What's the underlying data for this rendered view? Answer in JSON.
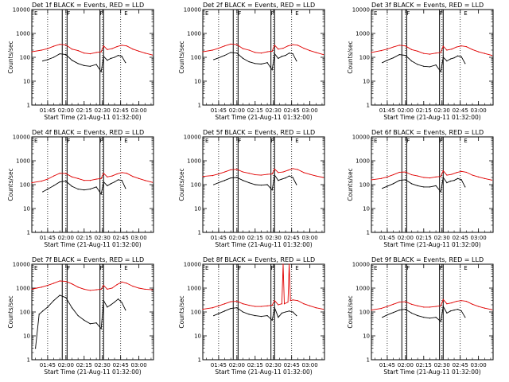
{
  "colors": {
    "events": "#000000",
    "lld": "#e00000",
    "marker": "#000000"
  },
  "layout": {
    "rows": 3,
    "cols": 3
  },
  "common": {
    "xlabel": "Start Time (21-Aug-11 01:32:00)",
    "ylabel": "Counts/sec",
    "x_ticks": [
      "01:45",
      "02:00",
      "02:15",
      "02:30",
      "02:45",
      "03:00"
    ],
    "y_ticks": [
      "1",
      "10",
      "100",
      "1000",
      "10000"
    ],
    "xlim": [
      "01:32",
      "03:12"
    ],
    "ylim": [
      1,
      10000
    ],
    "yscale": "log",
    "dotted_lines": [
      "01:45",
      "02:00",
      "02:30",
      "02:45"
    ],
    "solid_lines": [
      "01:57",
      "02:01",
      "02:28",
      "02:31"
    ],
    "flag_labels": [
      {
        "time": "01:34",
        "text": "E"
      },
      {
        "time": "02:01",
        "text": "F"
      },
      {
        "time": "02:28",
        "text": "F"
      },
      {
        "time": "02:48",
        "text": "E"
      }
    ]
  },
  "chart_data": [
    {
      "type": "line",
      "title": "Det 1f BLACK = Events, RED = LLD",
      "ylabel": "Counts/sec",
      "xlabel": "Start Time (21-Aug-11 01:32:00)",
      "series": [
        {
          "name": "Events",
          "color": "#000000",
          "x": [
            "01:41",
            "01:45",
            "01:50",
            "01:55",
            "02:00",
            "02:05",
            "02:10",
            "02:15",
            "02:20",
            "02:25",
            "02:29",
            "02:31",
            "02:34",
            "02:37",
            "02:40",
            "02:43",
            "02:46",
            "02:49"
          ],
          "y": [
            70,
            80,
            100,
            140,
            130,
            75,
            55,
            45,
            42,
            50,
            25,
            110,
            75,
            90,
            100,
            120,
            110,
            60
          ]
        },
        {
          "name": "LLD",
          "color": "#e00000",
          "x": [
            "01:32",
            "01:40",
            "01:45",
            "01:50",
            "01:55",
            "02:00",
            "02:05",
            "02:10",
            "02:15",
            "02:20",
            "02:25",
            "02:29",
            "02:31",
            "02:34",
            "02:38",
            "02:42",
            "02:46",
            "02:50",
            "02:55",
            "03:00",
            "03:05",
            "03:11"
          ],
          "y": [
            170,
            200,
            230,
            290,
            350,
            330,
            220,
            190,
            150,
            140,
            160,
            170,
            300,
            210,
            230,
            280,
            320,
            300,
            220,
            180,
            150,
            125
          ]
        }
      ]
    },
    {
      "type": "line",
      "title": "Det 2f BLACK = Events, RED = LLD",
      "ylabel": "Counts/sec",
      "xlabel": "Start Time (21-Aug-11 01:32:00)",
      "series": [
        {
          "name": "Events",
          "color": "#000000",
          "x": [
            "01:41",
            "01:45",
            "01:50",
            "01:55",
            "02:00",
            "02:05",
            "02:10",
            "02:15",
            "02:20",
            "02:25",
            "02:29",
            "02:31",
            "02:34",
            "02:37",
            "02:40",
            "02:43",
            "02:46",
            "02:49"
          ],
          "y": [
            80,
            95,
            120,
            160,
            150,
            90,
            65,
            55,
            52,
            60,
            30,
            140,
            90,
            110,
            120,
            150,
            140,
            70
          ]
        },
        {
          "name": "LLD",
          "color": "#e00000",
          "x": [
            "01:32",
            "01:40",
            "01:45",
            "01:50",
            "01:55",
            "02:00",
            "02:05",
            "02:10",
            "02:15",
            "02:20",
            "02:25",
            "02:29",
            "02:31",
            "02:34",
            "02:38",
            "02:42",
            "02:46",
            "02:50",
            "02:55",
            "03:00",
            "03:05",
            "03:11"
          ],
          "y": [
            170,
            200,
            240,
            300,
            360,
            340,
            230,
            200,
            160,
            150,
            170,
            180,
            320,
            220,
            240,
            300,
            340,
            320,
            240,
            190,
            160,
            130
          ]
        }
      ]
    },
    {
      "type": "line",
      "title": "Det 3f BLACK = Events, RED = LLD",
      "ylabel": "Counts/sec",
      "xlabel": "Start Time (21-Aug-11 01:32:00)",
      "series": [
        {
          "name": "Events",
          "color": "#000000",
          "x": [
            "01:41",
            "01:45",
            "01:50",
            "01:55",
            "02:00",
            "02:05",
            "02:10",
            "02:15",
            "02:20",
            "02:25",
            "02:29",
            "02:31",
            "02:34",
            "02:37",
            "02:40",
            "02:43",
            "02:46",
            "02:49"
          ],
          "y": [
            60,
            75,
            95,
            130,
            120,
            70,
            50,
            42,
            40,
            48,
            25,
            100,
            70,
            85,
            95,
            115,
            105,
            55
          ]
        },
        {
          "name": "LLD",
          "color": "#e00000",
          "x": [
            "01:32",
            "01:40",
            "01:45",
            "01:50",
            "01:55",
            "02:00",
            "02:05",
            "02:10",
            "02:15",
            "02:20",
            "02:25",
            "02:29",
            "02:31",
            "02:34",
            "02:38",
            "02:42",
            "02:46",
            "02:50",
            "02:55",
            "03:00",
            "03:05",
            "03:11"
          ],
          "y": [
            160,
            190,
            220,
            270,
            320,
            300,
            210,
            180,
            145,
            135,
            150,
            160,
            290,
            200,
            220,
            270,
            300,
            280,
            210,
            170,
            145,
            120
          ]
        }
      ]
    },
    {
      "type": "line",
      "title": "Det 4f BLACK = Events, RED = LLD",
      "ylabel": "Counts/sec",
      "xlabel": "Start Time (21-Aug-11 01:32:00)",
      "series": [
        {
          "name": "Events",
          "color": "#000000",
          "x": [
            "01:41",
            "01:45",
            "01:50",
            "01:55",
            "02:00",
            "02:05",
            "02:10",
            "02:15",
            "02:20",
            "02:25",
            "02:29",
            "02:31",
            "02:34",
            "02:37",
            "02:40",
            "02:43",
            "02:46",
            "02:49"
          ],
          "y": [
            50,
            65,
            90,
            130,
            140,
            85,
            65,
            60,
            65,
            80,
            40,
            130,
            90,
            110,
            130,
            160,
            150,
            70
          ]
        },
        {
          "name": "LLD",
          "color": "#e00000",
          "x": [
            "01:32",
            "01:40",
            "01:45",
            "01:50",
            "01:55",
            "02:00",
            "02:05",
            "02:10",
            "02:15",
            "02:20",
            "02:25",
            "02:29",
            "02:31",
            "02:34",
            "02:38",
            "02:42",
            "02:46",
            "02:50",
            "02:55",
            "03:00",
            "03:05",
            "03:11"
          ],
          "y": [
            120,
            140,
            170,
            230,
            300,
            290,
            210,
            180,
            150,
            150,
            170,
            180,
            300,
            210,
            230,
            280,
            320,
            300,
            220,
            180,
            150,
            125
          ]
        }
      ]
    },
    {
      "type": "line",
      "title": "Det 5f BLACK = Events, RED = LLD",
      "ylabel": "Counts/sec",
      "xlabel": "Start Time (21-Aug-11 01:32:00)",
      "series": [
        {
          "name": "Events",
          "color": "#000000",
          "x": [
            "01:41",
            "01:45",
            "01:50",
            "01:55",
            "02:00",
            "02:05",
            "02:10",
            "02:15",
            "02:20",
            "02:25",
            "02:29",
            "02:31",
            "02:34",
            "02:37",
            "02:40",
            "02:43",
            "02:46",
            "02:49"
          ],
          "y": [
            100,
            120,
            150,
            190,
            200,
            150,
            120,
            100,
            95,
            100,
            60,
            250,
            150,
            170,
            190,
            230,
            200,
            100
          ]
        },
        {
          "name": "LLD",
          "color": "#e00000",
          "x": [
            "01:32",
            "01:40",
            "01:45",
            "01:50",
            "01:55",
            "02:00",
            "02:05",
            "02:10",
            "02:15",
            "02:20",
            "02:25",
            "02:29",
            "02:31",
            "02:34",
            "02:38",
            "02:42",
            "02:46",
            "02:50",
            "02:55",
            "03:00",
            "03:05",
            "03:11"
          ],
          "y": [
            220,
            240,
            280,
            340,
            420,
            440,
            340,
            300,
            260,
            250,
            270,
            280,
            450,
            320,
            340,
            400,
            470,
            430,
            320,
            270,
            230,
            200
          ]
        }
      ]
    },
    {
      "type": "line",
      "title": "Det 6f BLACK = Events, RED = LLD",
      "ylabel": "Counts/sec",
      "xlabel": "Start Time (21-Aug-11 01:32:00)",
      "series": [
        {
          "name": "Events",
          "color": "#000000",
          "x": [
            "01:41",
            "01:45",
            "01:50",
            "01:55",
            "02:00",
            "02:05",
            "02:10",
            "02:15",
            "02:20",
            "02:25",
            "02:29",
            "02:31",
            "02:34",
            "02:37",
            "02:40",
            "02:43",
            "02:46",
            "02:49"
          ],
          "y": [
            70,
            85,
            110,
            150,
            160,
            110,
            90,
            80,
            80,
            90,
            50,
            200,
            120,
            140,
            150,
            180,
            160,
            80
          ]
        },
        {
          "name": "LLD",
          "color": "#e00000",
          "x": [
            "01:32",
            "01:40",
            "01:45",
            "01:50",
            "01:55",
            "02:00",
            "02:05",
            "02:10",
            "02:15",
            "02:20",
            "02:25",
            "02:29",
            "02:31",
            "02:34",
            "02:38",
            "02:42",
            "02:46",
            "02:50",
            "02:55",
            "03:00",
            "03:05",
            "03:11"
          ],
          "y": [
            160,
            180,
            210,
            260,
            330,
            340,
            260,
            230,
            200,
            190,
            210,
            220,
            380,
            250,
            270,
            320,
            360,
            330,
            250,
            210,
            180,
            155
          ]
        }
      ]
    },
    {
      "type": "line",
      "title": "Det 7f BLACK = Events, RED = LLD",
      "ylabel": "Counts/sec",
      "xlabel": "Start Time (21-Aug-11 01:32:00)",
      "series": [
        {
          "name": "Events",
          "color": "#000000",
          "x": [
            "01:35",
            "01:38",
            "01:41",
            "01:45",
            "01:50",
            "01:55",
            "02:00",
            "02:05",
            "02:10",
            "02:15",
            "02:20",
            "02:25",
            "02:29",
            "02:31",
            "02:34",
            "02:37",
            "02:40",
            "02:43",
            "02:46",
            "02:49"
          ],
          "y": [
            3,
            80,
            110,
            160,
            300,
            500,
            400,
            150,
            70,
            45,
            32,
            35,
            20,
            300,
            160,
            200,
            260,
            350,
            250,
            120
          ]
        },
        {
          "name": "LLD",
          "color": "#e00000",
          "x": [
            "01:32",
            "01:36",
            "01:40",
            "01:45",
            "01:50",
            "01:55",
            "02:00",
            "02:05",
            "02:10",
            "02:15",
            "02:20",
            "02:25",
            "02:29",
            "02:31",
            "02:34",
            "02:38",
            "02:42",
            "02:46",
            "02:50",
            "02:55",
            "03:00",
            "03:05",
            "03:11"
          ],
          "y": [
            900,
            1000,
            1100,
            1300,
            1600,
            2000,
            1900,
            1500,
            1100,
            900,
            800,
            850,
            900,
            1300,
            900,
            1000,
            1400,
            1800,
            1600,
            1200,
            1000,
            900,
            850
          ]
        }
      ]
    },
    {
      "type": "line",
      "title": "Det 8f BLACK = Events, RED = LLD",
      "ylabel": "Counts/sec",
      "xlabel": "Start Time (21-Aug-11 01:32:00)",
      "series": [
        {
          "name": "Events",
          "color": "#000000",
          "x": [
            "01:41",
            "01:45",
            "01:50",
            "01:55",
            "02:00",
            "02:05",
            "02:10",
            "02:15",
            "02:20",
            "02:25",
            "02:29",
            "02:31",
            "02:34",
            "02:37",
            "02:40",
            "02:43",
            "02:46",
            "02:49"
          ],
          "y": [
            70,
            85,
            110,
            140,
            150,
            100,
            80,
            70,
            65,
            70,
            45,
            150,
            60,
            90,
            100,
            110,
            100,
            70
          ]
        },
        {
          "name": "LLD",
          "color": "#e00000",
          "x": [
            "01:32",
            "01:40",
            "01:45",
            "01:50",
            "01:55",
            "02:00",
            "02:05",
            "02:10",
            "02:15",
            "02:20",
            "02:25",
            "02:29",
            "02:31",
            "02:34",
            "02:37",
            "02:38",
            "02:39",
            "02:42",
            "02:43",
            "02:44",
            "02:46",
            "02:50",
            "02:55",
            "03:00",
            "03:05",
            "03:11"
          ],
          "y": [
            130,
            150,
            180,
            220,
            270,
            280,
            220,
            190,
            170,
            170,
            180,
            190,
            300,
            200,
            220,
            10000,
            220,
            260,
            10000,
            300,
            320,
            300,
            220,
            180,
            150,
            130
          ]
        }
      ]
    },
    {
      "type": "line",
      "title": "Det 9f BLACK = Events, RED = LLD",
      "ylabel": "Counts/sec",
      "xlabel": "Start Time (21-Aug-11 01:32:00)",
      "series": [
        {
          "name": "Events",
          "color": "#000000",
          "x": [
            "01:41",
            "01:45",
            "01:50",
            "01:55",
            "02:00",
            "02:05",
            "02:10",
            "02:15",
            "02:20",
            "02:25",
            "02:29",
            "02:31",
            "02:34",
            "02:37",
            "02:40",
            "02:43",
            "02:46",
            "02:49"
          ],
          "y": [
            60,
            75,
            95,
            120,
            130,
            90,
            70,
            60,
            55,
            60,
            40,
            170,
            90,
            110,
            120,
            130,
            110,
            60
          ]
        },
        {
          "name": "LLD",
          "color": "#e00000",
          "x": [
            "01:32",
            "01:40",
            "01:45",
            "01:50",
            "01:55",
            "02:00",
            "02:05",
            "02:10",
            "02:15",
            "02:20",
            "02:25",
            "02:29",
            "02:31",
            "02:34",
            "02:38",
            "02:42",
            "02:46",
            "02:50",
            "02:55",
            "03:00",
            "03:05",
            "03:11"
          ],
          "y": [
            120,
            140,
            170,
            210,
            260,
            270,
            210,
            180,
            160,
            160,
            170,
            180,
            330,
            220,
            240,
            280,
            300,
            280,
            210,
            170,
            145,
            125
          ]
        }
      ]
    }
  ]
}
